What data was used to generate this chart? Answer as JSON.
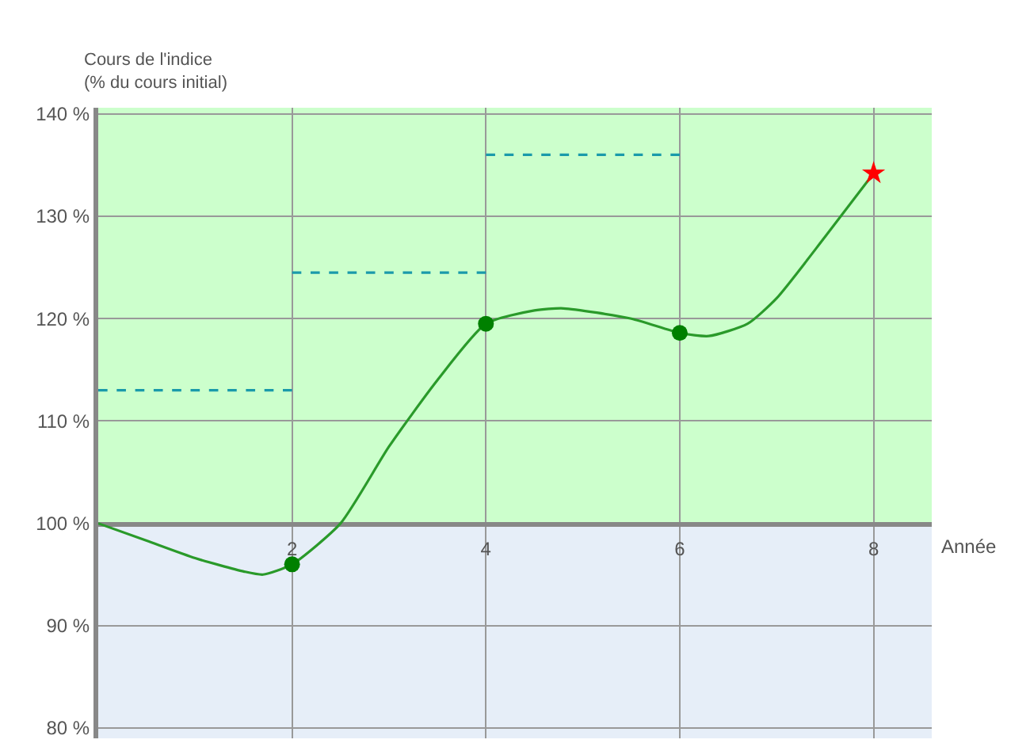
{
  "chart_data": {
    "type": "line",
    "ylabel": "Cours de l'indice\n(% du cours initial)",
    "xlabel": "Année",
    "xlim": [
      0,
      8.6
    ],
    "xticks": [
      2,
      4,
      6,
      8
    ],
    "ylim": [
      79,
      140.6
    ],
    "yticks": [
      {
        "value": 80,
        "label": "80 %"
      },
      {
        "value": 90,
        "label": "90 %"
      },
      {
        "value": 100,
        "label": "100 %"
      },
      {
        "value": 110,
        "label": "110 %"
      },
      {
        "value": 120,
        "label": "120 %"
      },
      {
        "value": 130,
        "label": "130 %"
      },
      {
        "value": 140,
        "label": "140 %"
      }
    ],
    "grid": true,
    "series": [
      {
        "color": "#2a9a2a",
        "marker": "none",
        "line_style": "solid",
        "x": [
          0,
          0.5,
          1,
          1.5,
          1.7,
          2,
          2.5,
          3,
          3.5,
          4,
          4.5,
          4.8,
          5.5,
          6,
          6.3,
          6.7,
          7,
          7.5,
          8
        ],
        "values": [
          100,
          98.3,
          96.6,
          95.3,
          95,
          96,
          100,
          107.5,
          114,
          119.5,
          120.8,
          121,
          120,
          118.6,
          118.3,
          119.5,
          122,
          128,
          134.2
        ]
      },
      {
        "type": "scatter",
        "color": "#008000",
        "marker": "circle",
        "x": [
          2,
          4,
          6
        ],
        "values": [
          96,
          119.5,
          118.6
        ]
      },
      {
        "type": "scatter",
        "color": "#ff0000",
        "marker": "star",
        "x": [
          8
        ],
        "values": [
          134.2
        ]
      },
      {
        "color": "#1a9aaa",
        "marker": "none",
        "line_style": "dashed",
        "x": [
          0,
          2
        ],
        "values": [
          113,
          113
        ]
      },
      {
        "color": "#1a9aaa",
        "marker": "none",
        "line_style": "dashed",
        "x": [
          2,
          4
        ],
        "values": [
          124.5,
          124.5
        ]
      },
      {
        "color": "#1a9aaa",
        "marker": "none",
        "line_style": "dashed",
        "x": [
          4,
          6
        ],
        "values": [
          136,
          136
        ]
      }
    ],
    "bands": [
      {
        "axis": "y",
        "from": 100,
        "to": 140.6,
        "color": "#ccffcc"
      },
      {
        "axis": "y",
        "from": 79,
        "to": 100,
        "color": "#e6eef8"
      }
    ]
  }
}
